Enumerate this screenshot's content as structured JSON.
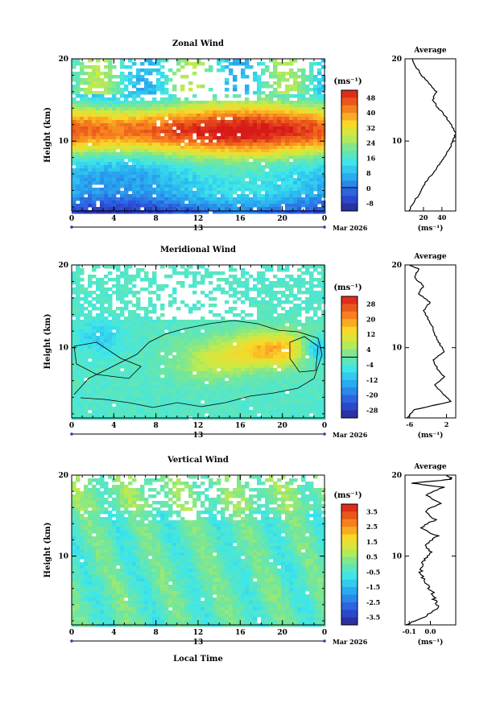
{
  "figure": {
    "xlabel": "Local Time",
    "ylabel": "Height (km)",
    "date_label": "Mar 2026",
    "day_label": "13",
    "unit": "(ms⁻¹)",
    "avg_unit": "(ms⁻¹)",
    "avg_title": "Average"
  },
  "chart_data": [
    {
      "type": "heatmap",
      "title": "Zonal Wind",
      "xlabel": "Local Time",
      "ylabel": "Height (km)",
      "x_ticks": [
        "0",
        "4",
        "8",
        "12",
        "16",
        "20",
        "0"
      ],
      "xlim": [
        0,
        24
      ],
      "y_ticks": [
        "20",
        "10"
      ],
      "ylim": [
        1.5,
        20
      ],
      "colorbar": {
        "unit": "(ms⁻¹)",
        "ticks": [
          "48",
          "40",
          "32",
          "24",
          "16",
          "8",
          "0",
          "-8"
        ],
        "range": [
          -12,
          52
        ]
      },
      "average_profile": {
        "title": "Average",
        "x_ticks": [
          "20",
          "40"
        ],
        "xlim": [
          0,
          55
        ],
        "heights": [
          1.5,
          3,
          4,
          5,
          6,
          7,
          8,
          9,
          10,
          11,
          12,
          13,
          14,
          15,
          16,
          17,
          18,
          19,
          20
        ],
        "values": [
          4,
          12,
          18,
          22,
          30,
          36,
          42,
          48,
          52,
          55,
          50,
          44,
          36,
          30,
          34,
          26,
          18,
          12,
          8
        ]
      }
    },
    {
      "type": "heatmap",
      "title": "Meridional Wind",
      "xlabel": "Local Time",
      "ylabel": "Height (km)",
      "x_ticks": [
        "0",
        "4",
        "8",
        "12",
        "16",
        "20",
        "0"
      ],
      "xlim": [
        0,
        24
      ],
      "y_ticks": [
        "20",
        "10"
      ],
      "ylim": [
        1.5,
        20
      ],
      "colorbar": {
        "unit": "(ms⁻¹)",
        "ticks": [
          "28",
          "20",
          "12",
          "4",
          "-4",
          "-12",
          "-20",
          "-28"
        ],
        "range": [
          -32,
          32
        ]
      },
      "average_profile": {
        "title": "Average",
        "x_ticks": [
          "-6",
          "2"
        ],
        "xlim": [
          -7,
          4
        ],
        "heights": [
          1.5,
          2.5,
          3.5,
          4.5,
          5.5,
          6.5,
          7.5,
          8.5,
          9.5,
          10.5,
          11.5,
          12.5,
          13.5,
          14.5,
          15.5,
          16.5,
          17.5,
          18.5,
          19.5,
          20
        ],
        "values": [
          -6.5,
          -5,
          3,
          1,
          -0.5,
          1.5,
          0,
          -1,
          1.5,
          0.5,
          -0.5,
          -1,
          -2,
          -3,
          -1.5,
          -4,
          -3,
          -5,
          -4,
          -6
        ]
      }
    },
    {
      "type": "heatmap",
      "title": "Vertical Wind",
      "xlabel": "Local Time",
      "ylabel": "Height (km)",
      "x_ticks": [
        "0",
        "4",
        "8",
        "12",
        "16",
        "20",
        "0"
      ],
      "xlim": [
        0,
        24
      ],
      "y_ticks": [
        "20",
        "10"
      ],
      "ylim": [
        1.5,
        20
      ],
      "colorbar": {
        "unit": "(ms⁻¹)",
        "ticks": [
          "3.5",
          "2.5",
          "1.5",
          "0.5",
          "-0.5",
          "-1.5",
          "-2.5",
          "-3.5"
        ],
        "range": [
          -4,
          4
        ]
      },
      "average_profile": {
        "title": "Average",
        "x_ticks": [
          "-0.1",
          "0.0"
        ],
        "xlim": [
          -0.12,
          0.12
        ],
        "heights": [
          1.5,
          2.5,
          3.5,
          4.5,
          5.5,
          6.5,
          7.5,
          8.5,
          9.5,
          10.5,
          11.5,
          12.5,
          13.5,
          14.5,
          15.5,
          16.5,
          17.5,
          18.5,
          19.0,
          19.5,
          20
        ],
        "values": [
          -0.11,
          -0.03,
          0.04,
          0.02,
          0.01,
          -0.02,
          -0.04,
          -0.05,
          -0.03,
          0.0,
          -0.02,
          0.03,
          -0.04,
          0.02,
          -0.03,
          0.05,
          -0.02,
          0.06,
          -0.08,
          0.1,
          0.08
        ]
      }
    }
  ]
}
